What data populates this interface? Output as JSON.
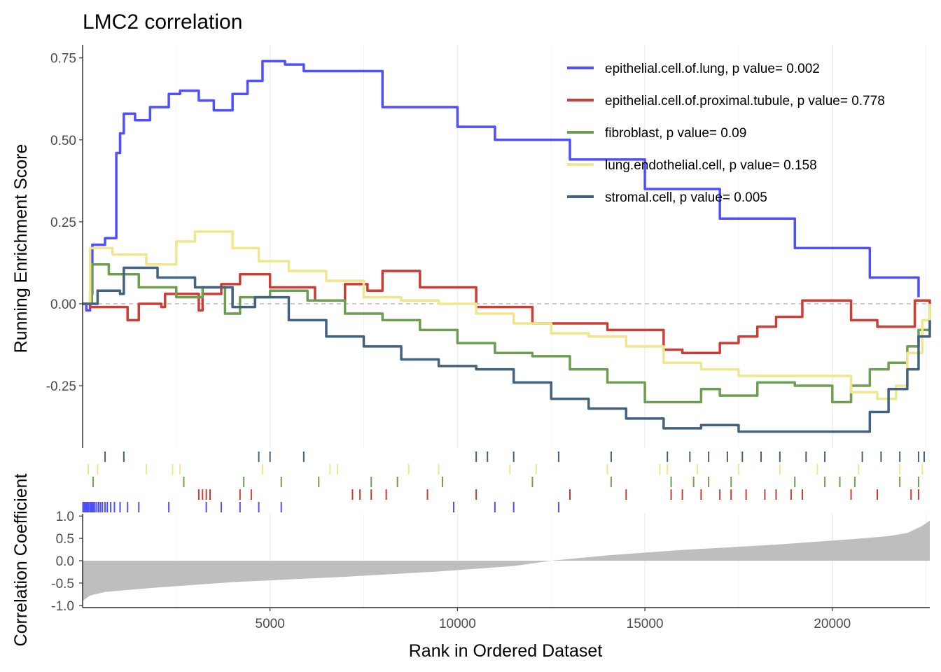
{
  "chart_data": {
    "type": "line",
    "title": "LMC2 correlation",
    "xlabel": "Rank in Ordered Dataset",
    "xlim": [
      1,
      22600
    ],
    "x_ticks": [
      5000,
      10000,
      15000,
      20000
    ],
    "grid": "vertical major and minor lines, panel background white",
    "legend_position": "top-right inside main panel",
    "panels": [
      {
        "name": "running-enrichment",
        "ylabel": "Running Enrichment Score",
        "ylim": [
          -0.44,
          0.79
        ],
        "y_ticks": [
          -0.25,
          0.0,
          0.25,
          0.5,
          0.75
        ],
        "y_tick_labels": [
          "-0.25",
          "0.00",
          "0.25",
          "0.50",
          "0.75"
        ],
        "reference_line": 0.0
      },
      {
        "name": "hit-rugs",
        "description_rows": 5
      },
      {
        "name": "correlation-coefficient",
        "ylabel": "Correlation Coefficient",
        "ylim": [
          -1.05,
          1.05
        ],
        "y_ticks": [
          -1.0,
          -0.5,
          0.0,
          0.5,
          1.0
        ],
        "y_tick_labels": [
          "-1.0",
          "-0.5",
          "0.0",
          "0.5",
          "1.0"
        ]
      }
    ],
    "x_tick_labels": [
      "5000",
      "10000",
      "15000",
      "20000"
    ],
    "series": [
      {
        "name": "epithelial.cell.of.lung, p value= 0.002",
        "color": "#4F4FFF",
        "points": [
          [
            1,
            0
          ],
          [
            100,
            -0.02
          ],
          [
            200,
            0.03
          ],
          [
            260,
            0.18
          ],
          [
            600,
            0.2
          ],
          [
            900,
            0.46
          ],
          [
            1000,
            0.52
          ],
          [
            1100,
            0.58
          ],
          [
            1400,
            0.56
          ],
          [
            1800,
            0.6
          ],
          [
            2100,
            0.6
          ],
          [
            2300,
            0.64
          ],
          [
            2600,
            0.65
          ],
          [
            3100,
            0.62
          ],
          [
            3500,
            0.59
          ],
          [
            4000,
            0.64
          ],
          [
            4400,
            0.68
          ],
          [
            4800,
            0.74
          ],
          [
            5400,
            0.73
          ],
          [
            5900,
            0.71
          ],
          [
            8000,
            0.6
          ],
          [
            10000,
            0.54
          ],
          [
            11000,
            0.5
          ],
          [
            13000,
            0.44
          ],
          [
            15000,
            0.35
          ],
          [
            17000,
            0.26
          ],
          [
            19000,
            0.17
          ],
          [
            21000,
            0.08
          ],
          [
            22300,
            0.02
          ]
        ],
        "hits": [
          10,
          40,
          70,
          100,
          130,
          160,
          200,
          230,
          260,
          290,
          330,
          380,
          430,
          480,
          530,
          600,
          660,
          750,
          850,
          1000,
          1200,
          1500,
          2300,
          3300,
          3700,
          4200,
          4700,
          5300,
          9900,
          11000,
          11500,
          12700
        ]
      },
      {
        "name": "epithelial.cell.of.proximal.tubule, p value= 0.778",
        "color": "#CC3D35",
        "points": [
          [
            1,
            0
          ],
          [
            200,
            -0.01
          ],
          [
            1200,
            -0.05
          ],
          [
            1500,
            0
          ],
          [
            2100,
            -0.01
          ],
          [
            2200,
            0.03
          ],
          [
            3100,
            -0.02
          ],
          [
            3200,
            0.03
          ],
          [
            3700,
            0.06
          ],
          [
            4200,
            0.09
          ],
          [
            5000,
            0.05
          ],
          [
            6200,
            0.01
          ],
          [
            7000,
            0.06
          ],
          [
            7600,
            0.04
          ],
          [
            8000,
            0.1
          ],
          [
            9000,
            0.05
          ],
          [
            10500,
            -0.01
          ],
          [
            12000,
            -0.06
          ],
          [
            14000,
            -0.08
          ],
          [
            15500,
            -0.14
          ],
          [
            16000,
            -0.15
          ],
          [
            17000,
            -0.12
          ],
          [
            17500,
            -0.1
          ],
          [
            18000,
            -0.07
          ],
          [
            18500,
            -0.04
          ],
          [
            19200,
            0.01
          ],
          [
            20500,
            -0.05
          ],
          [
            21200,
            -0.07
          ],
          [
            22200,
            0.01
          ],
          [
            22600,
            0
          ]
        ],
        "hits": [
          3100,
          3200,
          3300,
          3400,
          4200,
          4500,
          7200,
          7400,
          7700,
          8100,
          9200,
          10500,
          13000,
          14500,
          15700,
          16000,
          16500,
          17000,
          17300,
          17700,
          18200,
          18500,
          18900,
          19200,
          20500,
          21200,
          22100,
          22300
        ]
      },
      {
        "name": "fibroblast, p value= 0.09",
        "color": "#6E9E52",
        "points": [
          [
            1,
            0
          ],
          [
            250,
            0.12
          ],
          [
            700,
            0.09
          ],
          [
            1500,
            0.05
          ],
          [
            2500,
            0.02
          ],
          [
            3200,
            0.05
          ],
          [
            3800,
            -0.03
          ],
          [
            4200,
            0.02
          ],
          [
            5000,
            0.04
          ],
          [
            6000,
            0.01
          ],
          [
            7000,
            -0.03
          ],
          [
            8000,
            -0.05
          ],
          [
            9000,
            -0.08
          ],
          [
            10000,
            -0.12
          ],
          [
            11000,
            -0.15
          ],
          [
            12000,
            -0.16
          ],
          [
            13000,
            -0.2
          ],
          [
            14000,
            -0.24
          ],
          [
            15000,
            -0.3
          ],
          [
            15500,
            -0.3
          ],
          [
            16500,
            -0.26
          ],
          [
            17000,
            -0.28
          ],
          [
            18000,
            -0.24
          ],
          [
            19000,
            -0.25
          ],
          [
            20000,
            -0.3
          ],
          [
            20500,
            -0.25
          ],
          [
            21000,
            -0.2
          ],
          [
            21500,
            -0.18
          ],
          [
            22000,
            -0.13
          ],
          [
            22300,
            -0.08
          ],
          [
            22600,
            0
          ]
        ],
        "hits": [
          280,
          2700,
          4300,
          5300,
          6300,
          7700,
          8400,
          9600,
          12000,
          14100,
          15700,
          16300,
          16700,
          17300,
          19000,
          19800,
          20200,
          20600,
          21800,
          22300
        ]
      },
      {
        "name": "lung.endothelial.cell, p value= 0.158",
        "color": "#F0E68C",
        "points": [
          [
            1,
            0
          ],
          [
            200,
            0.17
          ],
          [
            800,
            0.15
          ],
          [
            1700,
            0.12
          ],
          [
            2500,
            0.19
          ],
          [
            3000,
            0.22
          ],
          [
            4000,
            0.17
          ],
          [
            4700,
            0.13
          ],
          [
            5500,
            0.1
          ],
          [
            6500,
            0.07
          ],
          [
            7500,
            0.02
          ],
          [
            8500,
            0.01
          ],
          [
            9500,
            0.0
          ],
          [
            10500,
            -0.03
          ],
          [
            11500,
            -0.06
          ],
          [
            12500,
            -0.09
          ],
          [
            13500,
            -0.1
          ],
          [
            14500,
            -0.13
          ],
          [
            15500,
            -0.18
          ],
          [
            16500,
            -0.2
          ],
          [
            17500,
            -0.22
          ],
          [
            18500,
            -0.22
          ],
          [
            19500,
            -0.22
          ],
          [
            20500,
            -0.27
          ],
          [
            21200,
            -0.29
          ],
          [
            21700,
            -0.25
          ],
          [
            22000,
            -0.15
          ],
          [
            22400,
            -0.05
          ],
          [
            22600,
            0
          ]
        ],
        "hits": [
          150,
          400,
          1700,
          2400,
          2600,
          4800,
          6600,
          6800,
          8700,
          9500,
          11400,
          12100,
          14000,
          15400,
          15600,
          16400,
          17500,
          18600,
          19600,
          20700,
          21800,
          22400
        ]
      },
      {
        "name": "stromal.cell, p value= 0.005",
        "color": "#426280",
        "points": [
          [
            1,
            0
          ],
          [
            400,
            0.04
          ],
          [
            1000,
            0.03
          ],
          [
            1100,
            0.11
          ],
          [
            2000,
            0.08
          ],
          [
            3000,
            0.05
          ],
          [
            4000,
            -0.01
          ],
          [
            4600,
            0.02
          ],
          [
            5500,
            -0.05
          ],
          [
            6500,
            -0.1
          ],
          [
            7500,
            -0.13
          ],
          [
            8500,
            -0.17
          ],
          [
            9500,
            -0.19
          ],
          [
            10500,
            -0.2
          ],
          [
            11500,
            -0.24
          ],
          [
            12500,
            -0.29
          ],
          [
            13500,
            -0.32
          ],
          [
            14500,
            -0.35
          ],
          [
            15500,
            -0.38
          ],
          [
            16500,
            -0.37
          ],
          [
            17500,
            -0.39
          ],
          [
            18500,
            -0.39
          ],
          [
            19500,
            -0.39
          ],
          [
            20500,
            -0.39
          ],
          [
            21000,
            -0.33
          ],
          [
            21500,
            -0.26
          ],
          [
            22000,
            -0.2
          ],
          [
            22300,
            -0.1
          ],
          [
            22600,
            -0.05
          ]
        ],
        "hits": [
          600,
          1100,
          4700,
          5000,
          5900,
          10500,
          10800,
          11500,
          12700,
          14100,
          15600,
          16200,
          16700,
          17200,
          17600,
          18100,
          18600,
          19300,
          19800,
          20800,
          21300,
          21800,
          22300,
          22450
        ]
      }
    ],
    "correlation": {
      "description": "Gray area: ranked correlation coefficient, from about -0.9 at rank 1 rising through 0 near rank 12500 to about 0.9 at rank 22600",
      "points": [
        [
          1,
          -0.9
        ],
        [
          200,
          -0.78
        ],
        [
          600,
          -0.7
        ],
        [
          2000,
          -0.6
        ],
        [
          4000,
          -0.48
        ],
        [
          7000,
          -0.36
        ],
        [
          9500,
          -0.24
        ],
        [
          11500,
          -0.12
        ],
        [
          12500,
          0.0
        ],
        [
          14000,
          0.12
        ],
        [
          16000,
          0.24
        ],
        [
          18500,
          0.36
        ],
        [
          20500,
          0.48
        ],
        [
          21500,
          0.55
        ],
        [
          22000,
          0.62
        ],
        [
          22400,
          0.78
        ],
        [
          22600,
          0.9
        ]
      ]
    }
  }
}
